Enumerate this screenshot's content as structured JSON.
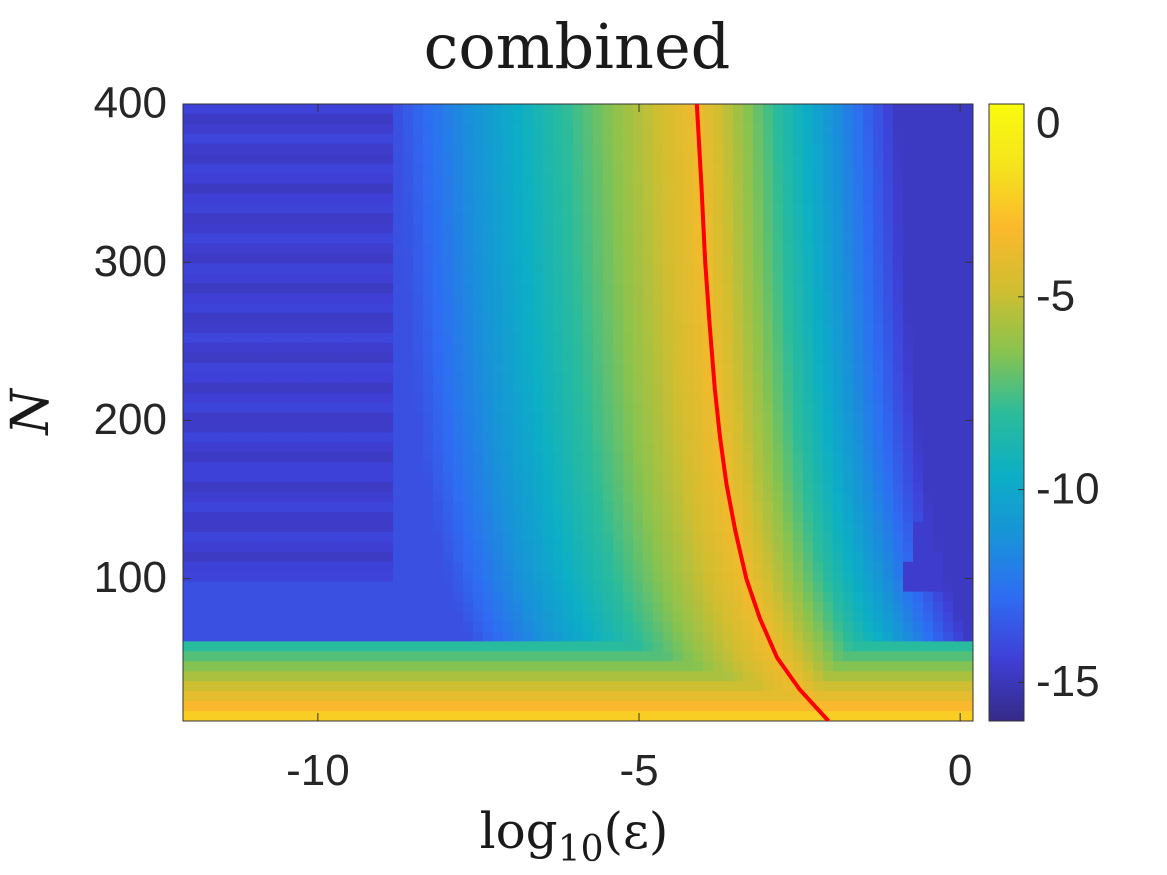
{
  "chart_data": {
    "type": "heatmap",
    "title": "combined",
    "xlabel_base": "log",
    "xlabel_sub": "10",
    "xlabel_arg": "(ε)",
    "ylabel": "N",
    "xlim": [
      -12.1,
      0.2
    ],
    "ylim": [
      10,
      400
    ],
    "xticks": [
      -10,
      -5,
      0
    ],
    "xtick_labels": [
      "-10",
      "-5",
      "0"
    ],
    "yticks": [
      100,
      200,
      300,
      400
    ],
    "ytick_labels": [
      "100",
      "200",
      "300",
      "400"
    ],
    "colorbar": {
      "range": [
        -16,
        0
      ],
      "ticks": [
        0,
        -5,
        -10,
        -15
      ],
      "tick_labels": [
        "0",
        "-5",
        "-10",
        "-15"
      ],
      "colormap": "parula"
    },
    "colormap_stops": [
      "#352a87",
      "#3f3fd6",
      "#2f6cf3",
      "#1893d8",
      "#0cafc5",
      "#2cbc9a",
      "#8ac34e",
      "#d1be30",
      "#fbb92c",
      "#f5e41c",
      "#f9fb0e"
    ],
    "boundary_curve": {
      "color": "#ff0000",
      "x": [
        -4.1,
        -4.03,
        -3.97,
        -3.9,
        -3.82,
        -3.74,
        -3.64,
        -3.5,
        -3.33,
        -3.12,
        -2.85,
        -2.5,
        -2.05
      ],
      "y": [
        400,
        350,
        300,
        260,
        220,
        190,
        160,
        130,
        100,
        75,
        50,
        30,
        10
      ]
    }
  }
}
